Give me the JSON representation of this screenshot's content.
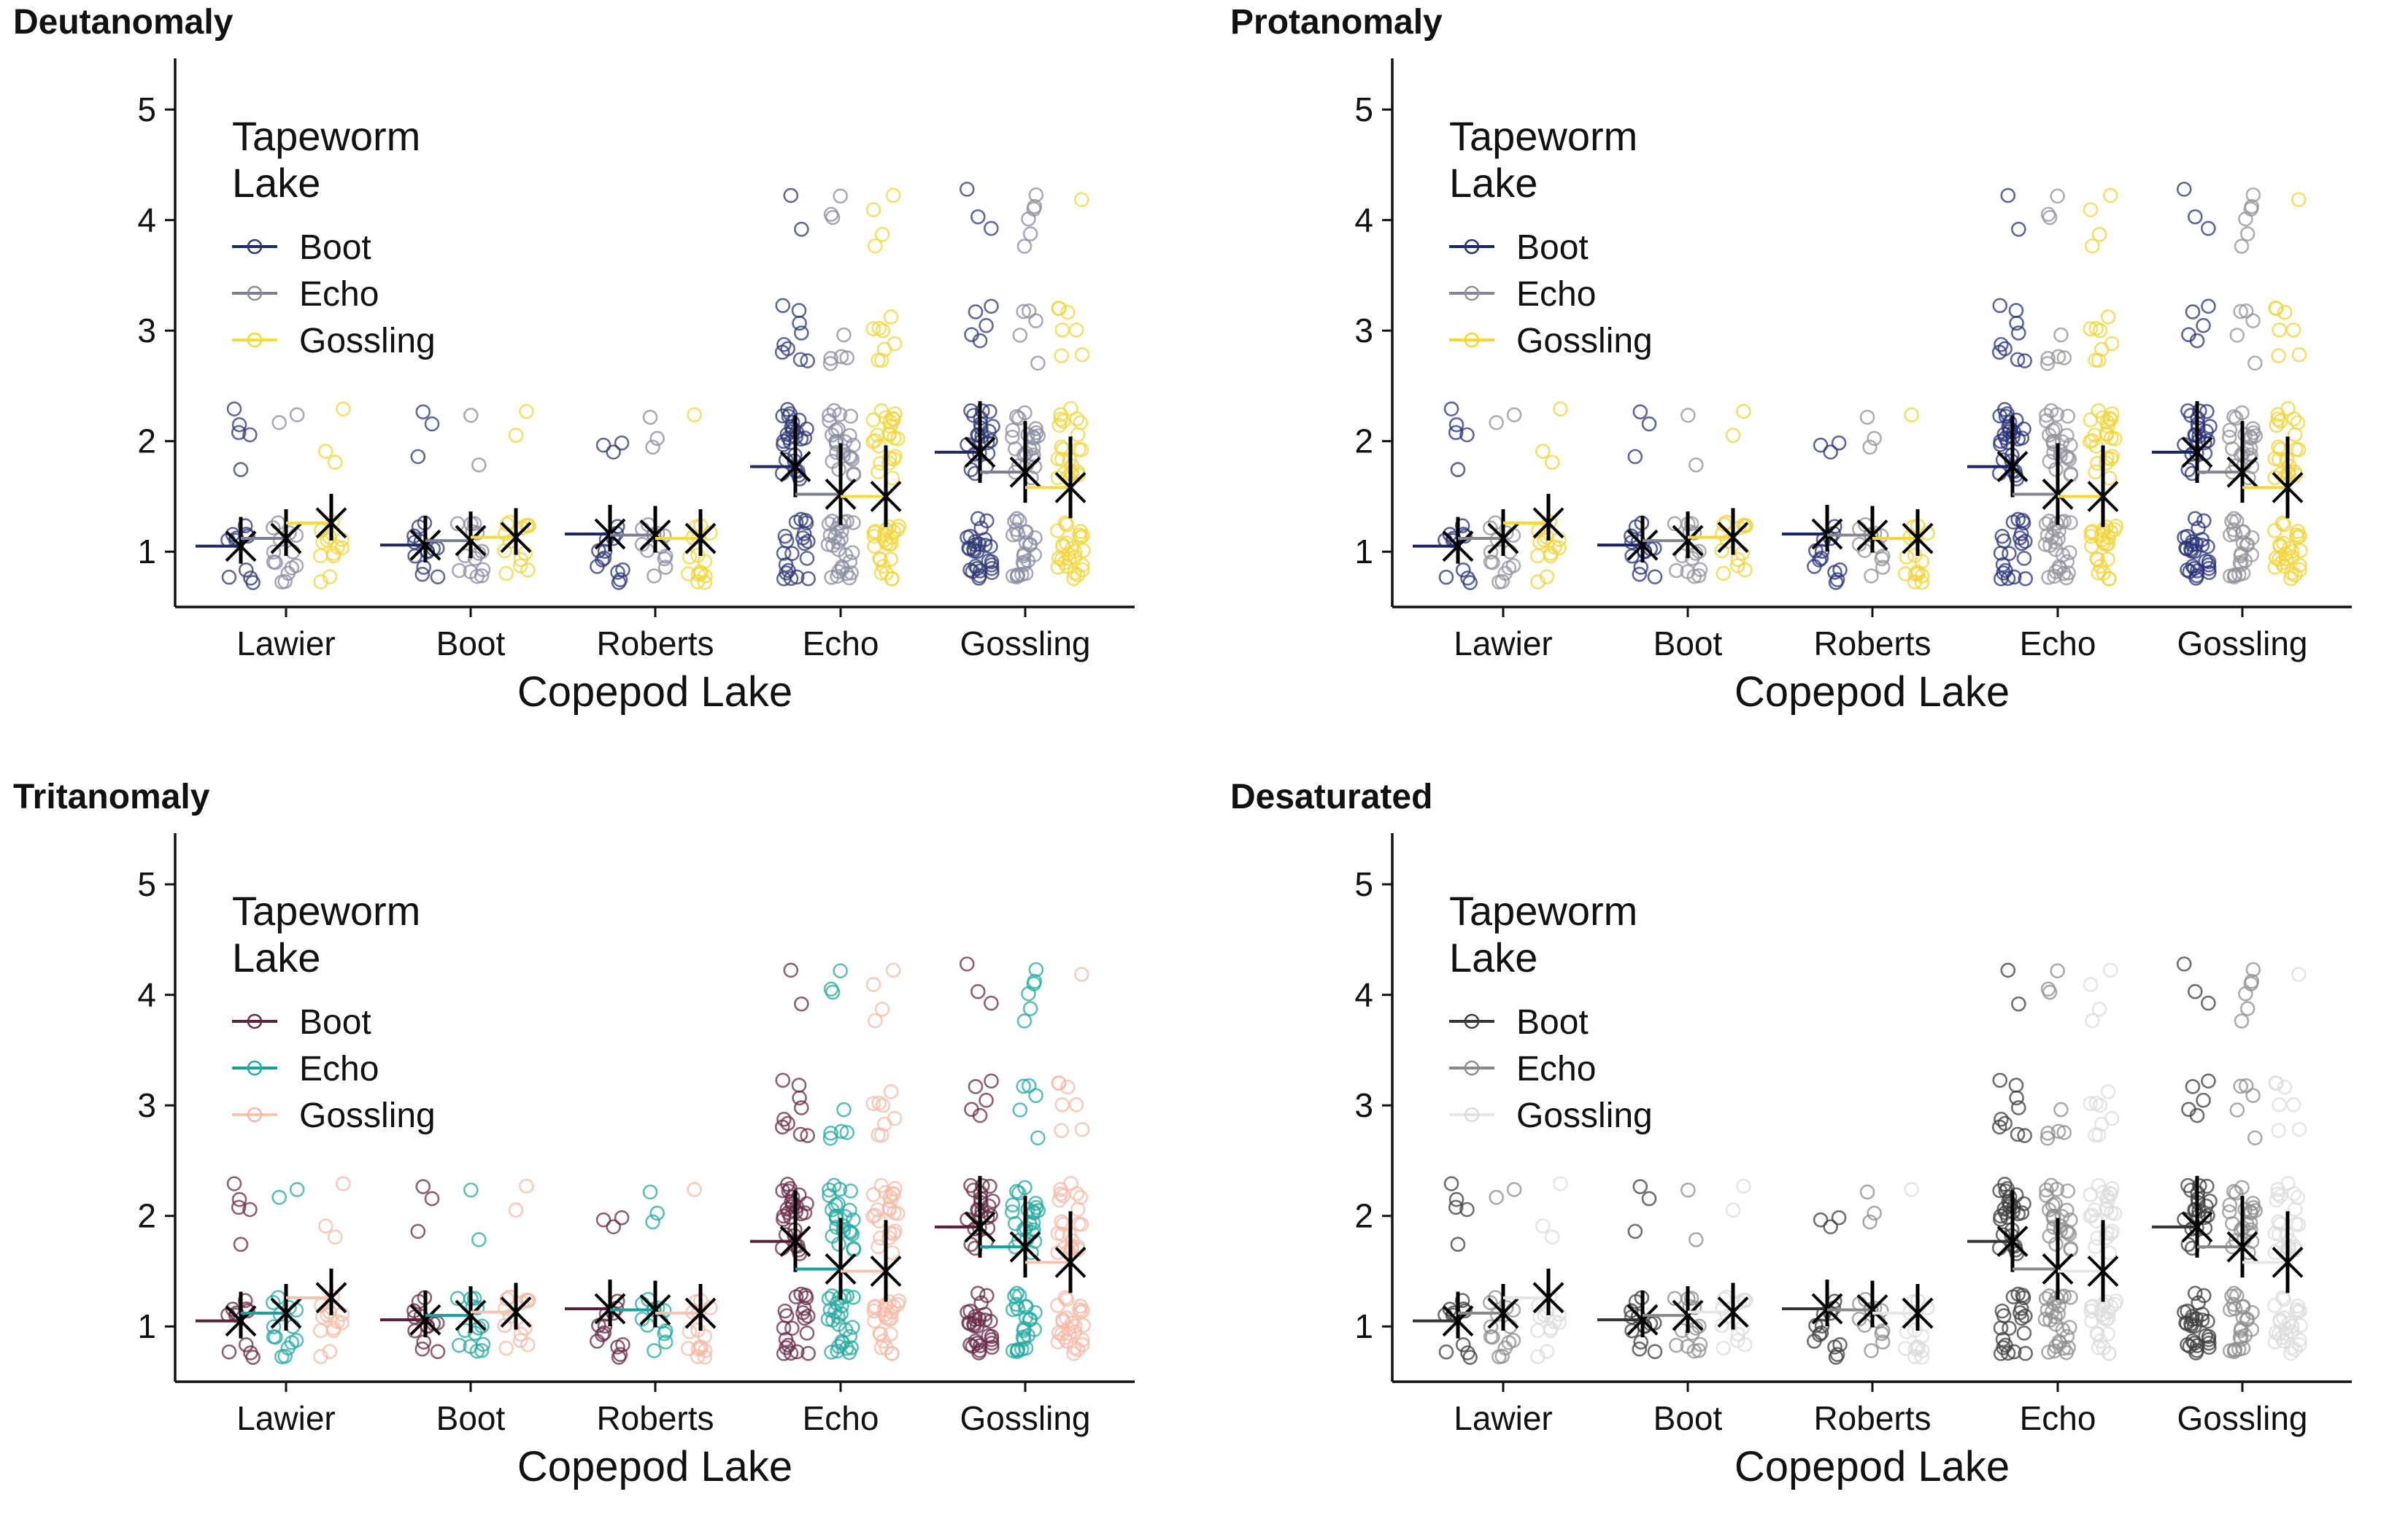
{
  "chart_data": [
    {
      "type": "scatter",
      "title": "Deutanomaly",
      "xlabel": "Copepod Lake",
      "ylabel": "",
      "categories": [
        "Lawier",
        "Boot",
        "Roberts",
        "Echo",
        "Gossling"
      ],
      "yticks": [
        1,
        2,
        3,
        4,
        5
      ],
      "ylim": [
        0.5,
        5.45
      ],
      "grid": false,
      "legend": {
        "title": "Tapeworm Lake",
        "title_lines": [
          "Tapeworm",
          "Lake"
        ],
        "placement": "top-left"
      },
      "series": [
        {
          "name": "Boot",
          "color": "#1f2a63",
          "point_color": "#2d3a75",
          "means": [
            1.05,
            1.06,
            1.16,
            1.77,
            1.9
          ]
        },
        {
          "name": "Echo",
          "color": "#7c7e93",
          "point_color": "#8b8da1",
          "means": [
            1.12,
            1.1,
            1.15,
            1.52,
            1.72
          ]
        },
        {
          "name": "Gossling",
          "color": "#f5dc3a",
          "point_color": "#f1d63c",
          "means": [
            1.26,
            1.13,
            1.12,
            1.5,
            1.58
          ]
        }
      ]
    },
    {
      "type": "scatter",
      "title": "Protanomaly",
      "xlabel": "Copepod Lake",
      "ylabel": "",
      "categories": [
        "Lawier",
        "Boot",
        "Roberts",
        "Echo",
        "Gossling"
      ],
      "yticks": [
        1,
        2,
        3,
        4,
        5
      ],
      "ylim": [
        0.5,
        5.45
      ],
      "grid": false,
      "legend": {
        "title": "Tapeworm Lake",
        "title_lines": [
          "Tapeworm",
          "Lake"
        ],
        "placement": "top-left"
      },
      "series": [
        {
          "name": "Boot",
          "color": "#1b2466",
          "point_color": "#28337a",
          "means": [
            1.05,
            1.06,
            1.16,
            1.77,
            1.9
          ]
        },
        {
          "name": "Echo",
          "color": "#86868f",
          "point_color": "#93939b",
          "means": [
            1.12,
            1.1,
            1.15,
            1.52,
            1.72
          ]
        },
        {
          "name": "Gossling",
          "color": "#f6d832",
          "point_color": "#f3d33a",
          "means": [
            1.26,
            1.13,
            1.12,
            1.5,
            1.58
          ]
        }
      ]
    },
    {
      "type": "scatter",
      "title": "Tritanomaly",
      "xlabel": "Copepod Lake",
      "ylabel": "",
      "categories": [
        "Lawier",
        "Boot",
        "Roberts",
        "Echo",
        "Gossling"
      ],
      "yticks": [
        1,
        2,
        3,
        4,
        5
      ],
      "ylim": [
        0.5,
        5.45
      ],
      "grid": false,
      "legend": {
        "title": "Tapeworm Lake",
        "title_lines": [
          "Tapeworm",
          "Lake"
        ],
        "placement": "top-left"
      },
      "series": [
        {
          "name": "Boot",
          "color": "#5a1f39",
          "point_color": "#6a2c47",
          "means": [
            1.05,
            1.06,
            1.16,
            1.77,
            1.9
          ]
        },
        {
          "name": "Echo",
          "color": "#17a39b",
          "point_color": "#26aaa2",
          "means": [
            1.12,
            1.1,
            1.15,
            1.52,
            1.72
          ]
        },
        {
          "name": "Gossling",
          "color": "#f7c3b3",
          "point_color": "#f5b9a6",
          "means": [
            1.26,
            1.13,
            1.12,
            1.5,
            1.58
          ]
        }
      ]
    },
    {
      "type": "scatter",
      "title": "Desaturated",
      "xlabel": "Copepod Lake",
      "ylabel": "",
      "categories": [
        "Lawier",
        "Boot",
        "Roberts",
        "Echo",
        "Gossling"
      ],
      "yticks": [
        1,
        2,
        3,
        4,
        5
      ],
      "ylim": [
        0.5,
        5.45
      ],
      "grid": false,
      "legend": {
        "title": "Tapeworm Lake",
        "title_lines": [
          "Tapeworm",
          "Lake"
        ],
        "placement": "top-left"
      },
      "series": [
        {
          "name": "Boot",
          "color": "#353535",
          "point_color": "#3f3f3f",
          "means": [
            1.05,
            1.06,
            1.16,
            1.77,
            1.9
          ]
        },
        {
          "name": "Echo",
          "color": "#8a8a8a",
          "point_color": "#8f8f8f",
          "means": [
            1.12,
            1.1,
            1.15,
            1.52,
            1.72
          ]
        },
        {
          "name": "Gossling",
          "color": "#e6e6e6",
          "point_color": "#dcdcdc",
          "means": [
            1.26,
            1.13,
            1.12,
            1.5,
            1.58
          ]
        }
      ]
    }
  ]
}
